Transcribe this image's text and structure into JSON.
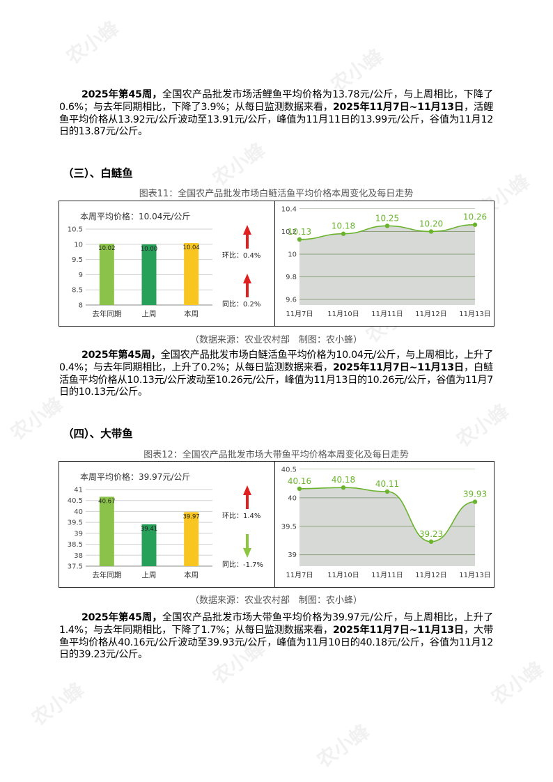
{
  "watermark": "农小蜂",
  "para1": {
    "lead": "2025年第45周，",
    "t1": "全国农产品批发市场活鲤鱼平均价格为13.78元/公斤，与上周相比，下降了0.6%；与去年同期相比，下降了3.9%；从每日监测数据来看，",
    "bold2": "2025年11月7日~11月13日",
    "t2": "，活鲤鱼平均价格从13.92元/公斤波动至13.91元/公斤，峰值为11月11日的13.99元/公斤，谷值为11月12日的13.87元/公斤。"
  },
  "section3": "（三）、白鲢鱼",
  "section4": "（四）、大带鱼",
  "source_text": "（数据来源：农业农村部　制图：农小蜂）",
  "para2": {
    "lead": "2025年第45周，",
    "t1": "全国农产品批发市场白鲢活鱼平均价格为10.04元/公斤，与上周相比，上升了0.4%；与去年同期相比，上升了0.2%；从每日监测数据来看，",
    "bold2": "2025年11月7日~11月13日",
    "t2": "，白鲢活鱼平均价格从10.13元/公斤波动至10.26元/公斤，峰值为11月13日的10.26元/公斤，谷值为11月7日的10.13元/公斤。"
  },
  "para3": {
    "lead": "2025年第45周，",
    "t1": "全国农产品批发市场大带鱼平均价格为39.97元/公斤，与上周相比，上升了1.4%；与去年同期相比，下降了1.7%；从每日监测数据来看，",
    "bold2": "2025年11月7日~11月13日",
    "t2": "，大带鱼平均价格从40.16元/公斤波动至39.93元/公斤，峰值为11月10日的40.18元/公斤，谷值为11月12日的39.23元/公斤。"
  },
  "colors": {
    "bar_last_year": "#8bc34a",
    "bar_last_week": "#27a05a",
    "bar_this_week": "#f9c520",
    "line": "#6ab42d",
    "area": "#d7d9d6",
    "up_arrow": "#e02020",
    "down_arrow": "#8cc63f"
  },
  "chart_data": [
    {
      "type": "bar",
      "title": "图表11：全国农产品批发市场白鲢活鱼平均价格本周变化及每日走势",
      "subtitle": "本周平均价格：10.04元/公斤",
      "categories": [
        "去年同期",
        "上周",
        "本周"
      ],
      "values": [
        10.02,
        10.0,
        10.04
      ],
      "value_labels": [
        "10.02",
        "10.00",
        "10.04"
      ],
      "ylim": [
        8,
        10.5
      ],
      "yticks": [
        "10.5",
        "10",
        "9.5",
        "9",
        "8.5",
        "8"
      ],
      "ytick_values": [
        10.5,
        10,
        9.5,
        9,
        8.5,
        8
      ],
      "changes": [
        {
          "label": "环比：0.4%",
          "direction": "up"
        },
        {
          "label": "同比：0.2%",
          "direction": "up"
        }
      ]
    },
    {
      "type": "area",
      "x": [
        "11月7日",
        "11月10日",
        "11月11日",
        "11月12日",
        "11月13日"
      ],
      "values": [
        10.13,
        10.18,
        10.25,
        10.2,
        10.26
      ],
      "value_labels": [
        "10.13",
        "10.18",
        "10.25",
        "10.20",
        "10.26"
      ],
      "ylim": [
        9.55,
        10.4
      ],
      "yticks": [
        "10.4",
        "10.2",
        "10",
        "9.8",
        "9.6"
      ],
      "ytick_values": [
        10.4,
        10.2,
        10,
        9.8,
        9.6
      ]
    },
    {
      "type": "bar",
      "title": "图表12：全国农产品批发市场大带鱼平均价格本周变化及每日走势",
      "subtitle": "本周平均价格：39.97元/公斤",
      "categories": [
        "去年同期",
        "上周",
        "本周"
      ],
      "values": [
        40.67,
        39.41,
        39.97
      ],
      "value_labels": [
        "40.67",
        "39.41",
        "39.97"
      ],
      "ylim": [
        37.5,
        41
      ],
      "yticks": [
        "41",
        "40.5",
        "40",
        "39.5",
        "39",
        "38.5",
        "38",
        "37.5"
      ],
      "ytick_values": [
        41,
        40.5,
        40,
        39.5,
        39,
        38.5,
        38,
        37.5
      ],
      "changes": [
        {
          "label": "环比：1.4%",
          "direction": "up"
        },
        {
          "label": "同比：-1.7%",
          "direction": "down"
        }
      ]
    },
    {
      "type": "area",
      "x": [
        "11月7日",
        "11月10日",
        "11月11日",
        "11月12日",
        "11月13日"
      ],
      "values": [
        40.16,
        40.18,
        40.11,
        39.23,
        39.93
      ],
      "value_labels": [
        "40.16",
        "40.18",
        "40.11",
        "39.23",
        "39.93"
      ],
      "ylim": [
        38.8,
        40.5
      ],
      "yticks": [
        "40.5",
        "40",
        "39.5",
        "39"
      ],
      "ytick_values": [
        40.5,
        40,
        39.5,
        39
      ]
    }
  ]
}
